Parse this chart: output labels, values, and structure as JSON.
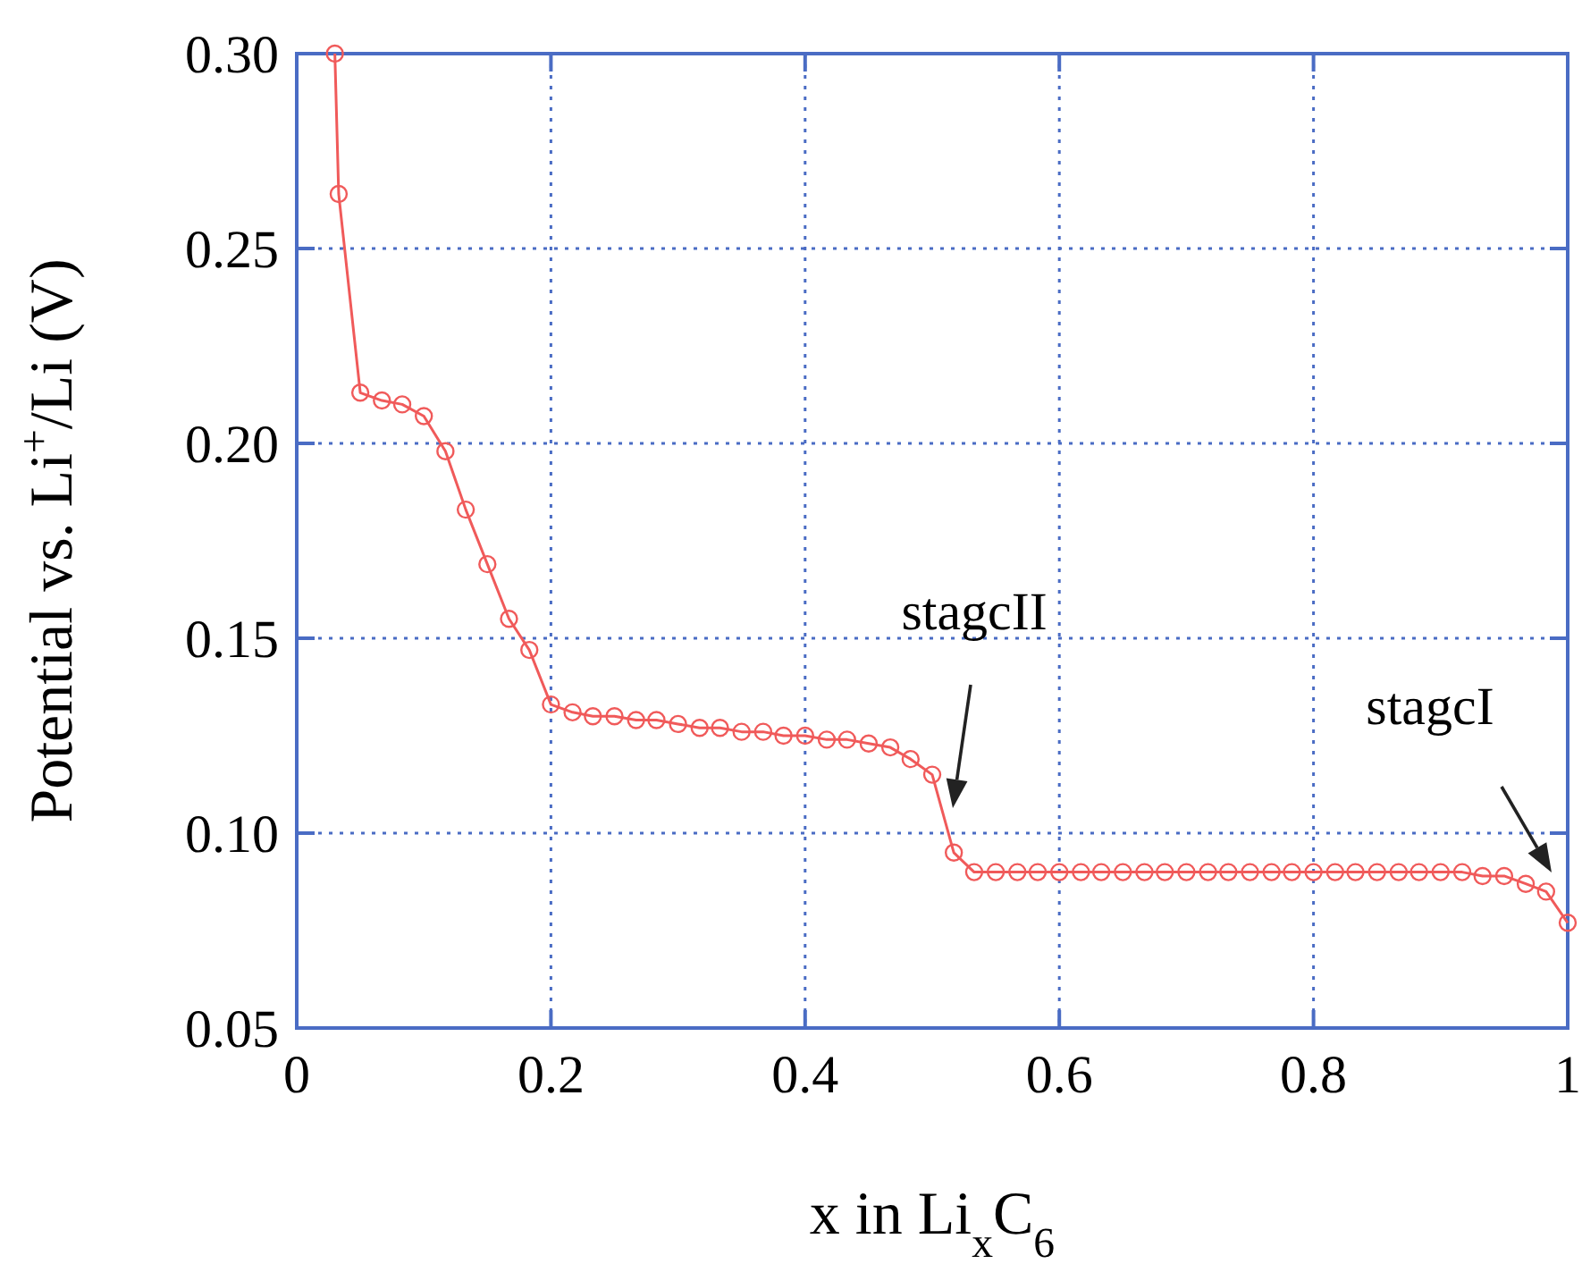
{
  "chart_data": {
    "type": "line",
    "xlabel": "x in Li$_{x}$C$_{6}$",
    "ylabel": "Potential vs. Li$^{+}$/Li (V)",
    "xlim": [
      0,
      1
    ],
    "ylim": [
      0.05,
      0.3
    ],
    "xticks": [
      0,
      0.2,
      0.4,
      0.6,
      0.8,
      1
    ],
    "yticks": [
      {
        "value": 0.05,
        "label": "0.05"
      },
      {
        "value": 0.1,
        "label": "0.10"
      },
      {
        "value": 0.15,
        "label": "0.15"
      },
      {
        "value": 0.2,
        "label": "0.20"
      },
      {
        "value": 0.25,
        "label": "0.25"
      },
      {
        "value": 0.3,
        "label": "0.30"
      }
    ],
    "grid": true,
    "marker": "circle",
    "line_style": "solid",
    "series": [
      {
        "color": "#f05a5a",
        "x": [
          0.03,
          0.033,
          0.05,
          0.067,
          0.083,
          0.1,
          0.117,
          0.133,
          0.15,
          0.167,
          0.183,
          0.2,
          0.217,
          0.233,
          0.25,
          0.267,
          0.283,
          0.3,
          0.317,
          0.333,
          0.35,
          0.367,
          0.383,
          0.4,
          0.417,
          0.433,
          0.45,
          0.467,
          0.483,
          0.5,
          0.517,
          0.533,
          0.55,
          0.567,
          0.583,
          0.6,
          0.617,
          0.633,
          0.65,
          0.667,
          0.683,
          0.7,
          0.717,
          0.733,
          0.75,
          0.767,
          0.783,
          0.8,
          0.817,
          0.833,
          0.85,
          0.867,
          0.883,
          0.9,
          0.917,
          0.933,
          0.95,
          0.967,
          0.983,
          1
        ],
        "values": [
          0.3,
          0.264,
          0.213,
          0.211,
          0.21,
          0.207,
          0.198,
          0.183,
          0.169,
          0.155,
          0.147,
          0.133,
          0.131,
          0.13,
          0.13,
          0.129,
          0.129,
          0.128,
          0.127,
          0.127,
          0.126,
          0.126,
          0.125,
          0.125,
          0.124,
          0.124,
          0.123,
          0.122,
          0.119,
          0.115,
          0.095,
          0.09,
          0.09,
          0.09,
          0.09,
          0.09,
          0.09,
          0.09,
          0.09,
          0.09,
          0.09,
          0.09,
          0.09,
          0.09,
          0.09,
          0.09,
          0.09,
          0.09,
          0.09,
          0.09,
          0.09,
          0.09,
          0.09,
          0.09,
          0.09,
          0.089,
          0.089,
          0.087,
          0.085,
          0.077
        ]
      }
    ],
    "annotations": [
      "stagcII",
      "stagcI"
    ]
  }
}
